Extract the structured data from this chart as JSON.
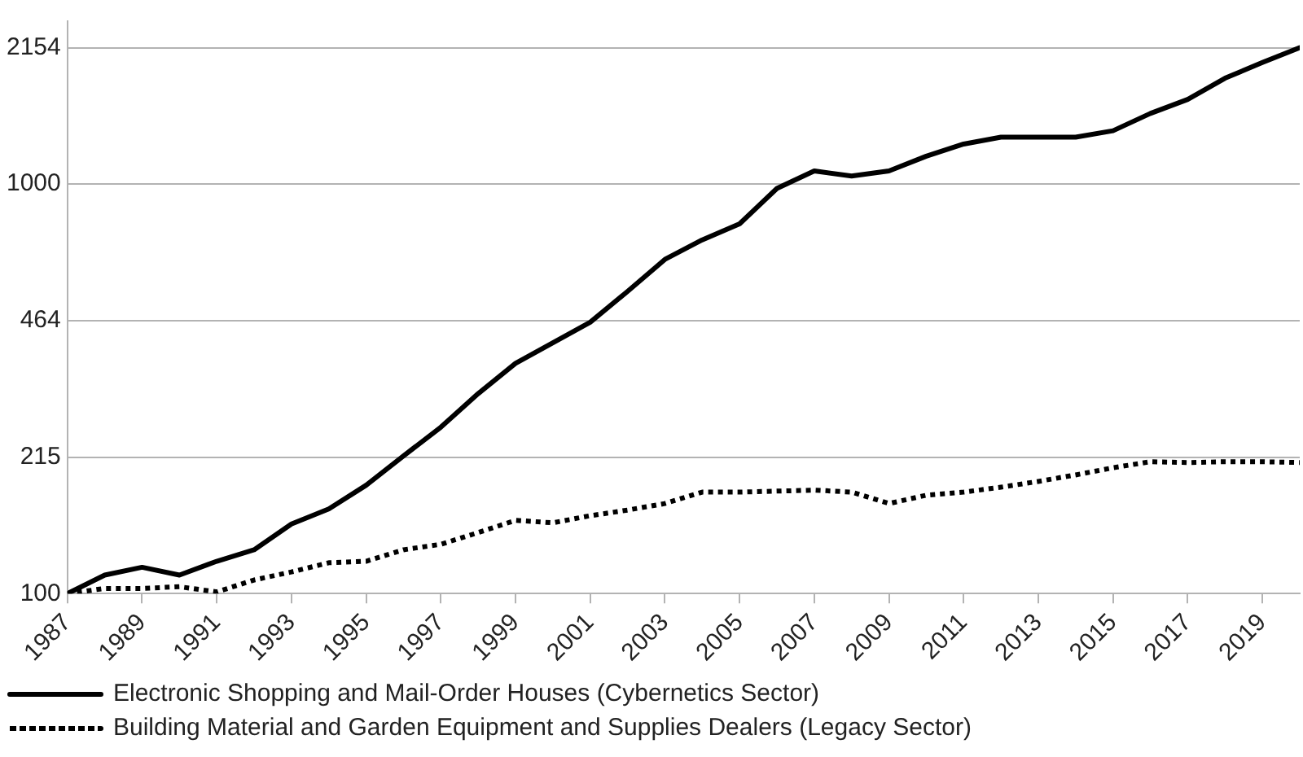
{
  "chart_data": {
    "type": "line",
    "x": [
      1987,
      1988,
      1989,
      1990,
      1991,
      1992,
      1993,
      1994,
      1995,
      1996,
      1997,
      1998,
      1999,
      2000,
      2001,
      2002,
      2003,
      2004,
      2005,
      2006,
      2007,
      2008,
      2009,
      2010,
      2011,
      2012,
      2013,
      2014,
      2015,
      2016,
      2017,
      2018,
      2019,
      2020
    ],
    "series": [
      {
        "name": "Electronic Shopping and Mail-Order Houses (Cybernetics Sector)",
        "color": "#000000",
        "line_style": "solid",
        "values": [
          100,
          111,
          116,
          111,
          120,
          128,
          148,
          161,
          184,
          217,
          255,
          308,
          365,
          410,
          460,
          547,
          655,
          731,
          800,
          976,
          1077,
          1047,
          1077,
          1170,
          1253,
          1302,
          1302,
          1302,
          1350,
          1488,
          1610,
          1814,
          1982,
          2154
        ]
      },
      {
        "name": "Building Material and Garden Equipment and Supplies Dealers (Legacy Sector)",
        "color": "#000000",
        "line_style": "dotted",
        "values": [
          100,
          103,
          103,
          104,
          101,
          108,
          113,
          119,
          120,
          128,
          132,
          141,
          151,
          149,
          155,
          160,
          166,
          177,
          177,
          178,
          179,
          177,
          166,
          174,
          177,
          182,
          188,
          195,
          203,
          210,
          209,
          210,
          210,
          209
        ]
      }
    ],
    "xlim": [
      1987,
      2020
    ],
    "xticks": [
      1987,
      1989,
      1991,
      1993,
      1995,
      1997,
      1999,
      2001,
      2003,
      2005,
      2007,
      2009,
      2011,
      2013,
      2015,
      2017,
      2019
    ],
    "ylim": [
      100,
      2500
    ],
    "yticks": [
      100,
      215,
      464,
      1000,
      2154
    ],
    "log": "y",
    "grid": "y",
    "legend": "bottom",
    "marker": "none"
  }
}
